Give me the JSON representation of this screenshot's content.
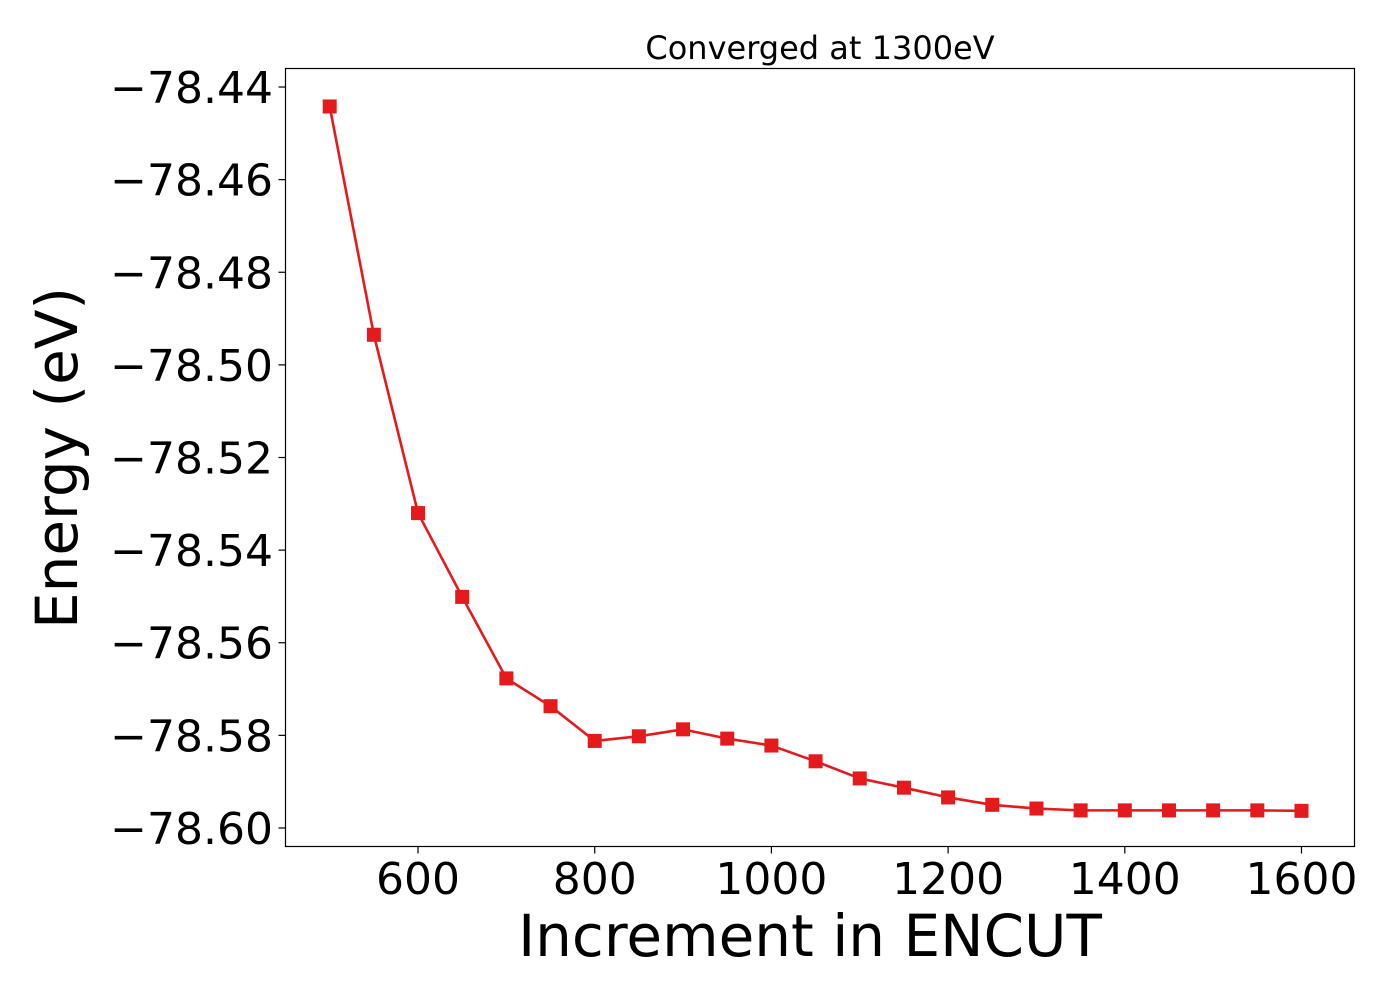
{
  "chart_data": {
    "type": "line",
    "title": "Converged at 1300eV",
    "xlabel": "Increment in ENCUT",
    "ylabel": "Energy (eV)",
    "xlim": [
      450,
      1660
    ],
    "ylim": [
      -78.604,
      -78.436
    ],
    "xticks": [
      600,
      800,
      1000,
      1200,
      1400,
      1600
    ],
    "xtick_labels": [
      "600",
      "800",
      "1000",
      "1200",
      "1400",
      "1600"
    ],
    "yticks": [
      -78.44,
      -78.46,
      -78.48,
      -78.5,
      -78.52,
      -78.54,
      -78.56,
      -78.58,
      -78.6
    ],
    "ytick_labels": [
      "−78.44",
      "−78.46",
      "−78.48",
      "−78.50",
      "−78.52",
      "−78.54",
      "−78.56",
      "−78.58",
      "−78.60"
    ],
    "grid": false,
    "legend": "none",
    "series": [
      {
        "color": "#e41a1c",
        "marker": "square",
        "x": [
          500,
          550,
          600,
          650,
          700,
          750,
          800,
          850,
          900,
          950,
          1000,
          1050,
          1100,
          1150,
          1200,
          1250,
          1300,
          1350,
          1400,
          1450,
          1500,
          1550,
          1600
        ],
        "y": [
          -78.4442,
          -78.4935,
          -78.532,
          -78.5501,
          -78.5677,
          -78.5737,
          -78.5812,
          -78.5802,
          -78.5787,
          -78.5807,
          -78.5822,
          -78.5856,
          -78.5893,
          -78.5913,
          -78.5934,
          -78.595,
          -78.5958,
          -78.5962,
          -78.5962,
          -78.5962,
          -78.5962,
          -78.5962,
          -78.5963
        ]
      }
    ]
  }
}
